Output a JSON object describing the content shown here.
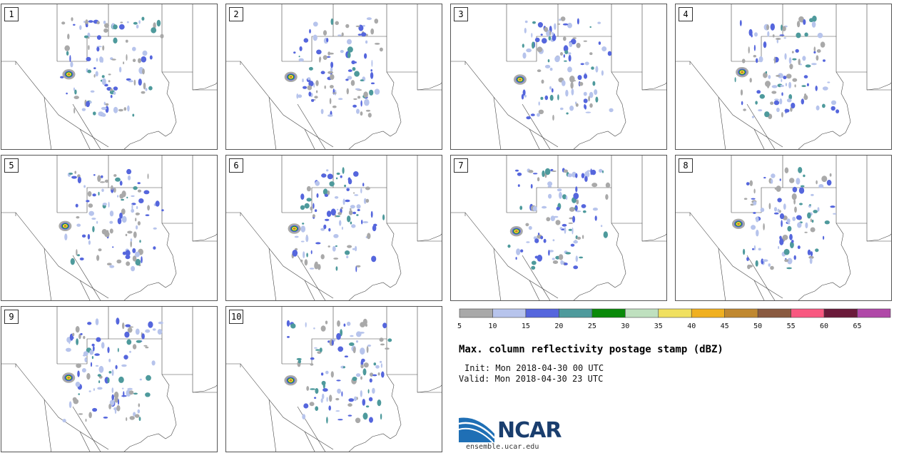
{
  "panels": [
    {
      "label": "1"
    },
    {
      "label": "2"
    },
    {
      "label": "3"
    },
    {
      "label": "4"
    },
    {
      "label": "5"
    },
    {
      "label": "6"
    },
    {
      "label": "7"
    },
    {
      "label": "8"
    },
    {
      "label": "9"
    },
    {
      "label": "10"
    }
  ],
  "colorbar": {
    "colors": [
      "#a9a9a9",
      "#b7c4ec",
      "#5566dd",
      "#4e9a9c",
      "#0a8a0a",
      "#bfe0bf",
      "#f0e060",
      "#f0b020",
      "#c08830",
      "#8a5a40",
      "#f85880",
      "#6a1a3a",
      "#b048a8"
    ],
    "ticks": [
      "5",
      "10",
      "15",
      "20",
      "25",
      "30",
      "35",
      "40",
      "45",
      "50",
      "55",
      "60",
      "65"
    ]
  },
  "title": "Max. column reflectivity postage stamp (dBZ)",
  "init_text": "Init: Mon 2018-04-30 00 UTC",
  "valid_text": "Valid: Mon 2018-04-30 23 UTC",
  "logo": {
    "text": "NCAR",
    "url": "ensemble.ucar.edu"
  }
}
